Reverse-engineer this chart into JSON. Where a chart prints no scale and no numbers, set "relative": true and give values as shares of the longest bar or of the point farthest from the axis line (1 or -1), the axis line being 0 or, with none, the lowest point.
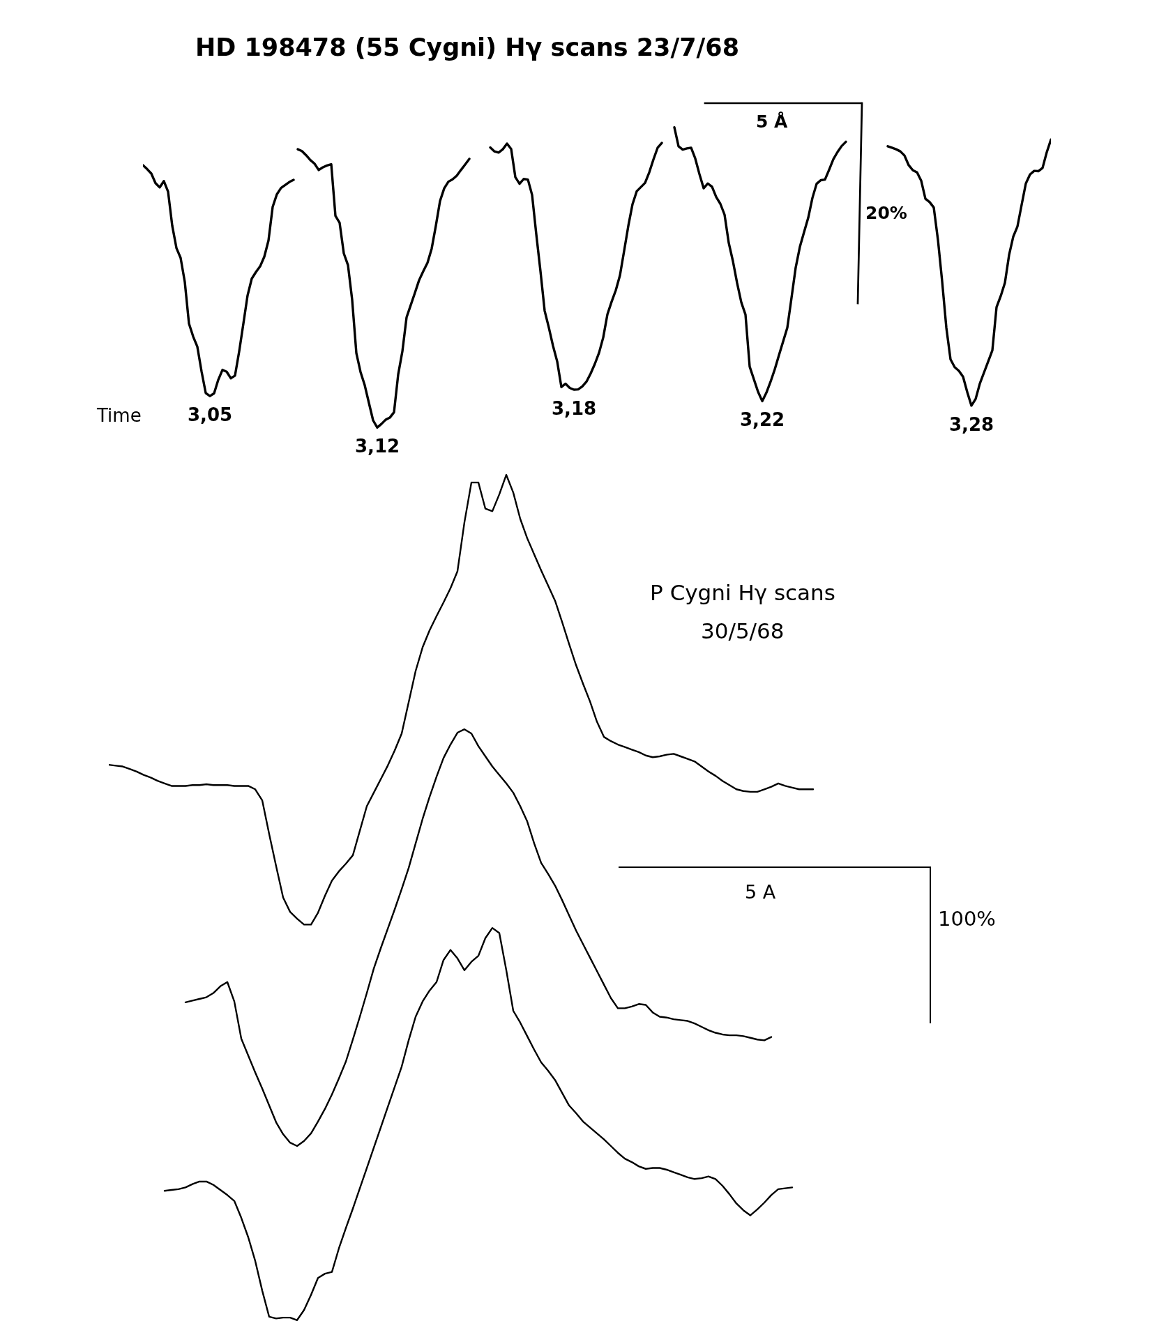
{
  "chart_data": [
    {
      "type": "line",
      "title": "HD 198478 (55 Cygni) Hγ scans 23/7/68",
      "relative": true,
      "tick_labels": false,
      "categories": [
        null,
        null,
        null,
        null,
        null,
        null,
        null,
        null,
        null,
        null,
        null,
        null,
        null,
        null,
        null,
        null,
        null,
        null,
        null,
        null,
        null,
        null,
        null,
        null,
        null,
        null,
        null,
        null,
        null,
        null,
        null,
        null,
        null,
        null,
        null,
        null,
        null,
        null,
        null,
        null,
        null,
        null,
        null,
        null,
        null,
        null,
        null,
        null,
        null,
        null,
        null,
        null,
        null,
        null,
        null,
        null,
        null,
        null,
        null,
        null,
        null,
        null,
        null,
        null,
        null,
        null,
        null,
        null,
        null,
        null,
        null,
        null,
        null,
        null,
        null,
        null,
        null,
        null,
        null,
        null,
        null,
        null,
        null,
        null,
        null,
        null,
        null,
        null,
        null,
        null,
        null,
        null,
        null,
        null,
        null,
        null,
        null,
        null,
        null,
        null,
        null,
        null,
        null,
        null,
        null,
        null,
        null,
        null,
        null,
        null,
        null,
        null,
        null,
        null,
        null,
        null,
        null,
        null,
        null,
        null,
        null,
        null,
        null,
        null,
        null,
        null,
        null,
        null,
        null,
        null,
        null,
        null,
        null,
        null,
        null,
        null,
        null,
        null,
        null,
        null,
        null,
        null,
        null,
        null,
        null,
        null,
        null,
        null,
        null,
        null,
        null,
        null,
        null,
        null,
        null,
        null,
        null,
        null,
        null,
        null,
        null,
        null,
        null,
        null,
        null,
        null,
        null,
        null,
        null,
        null,
        null,
        null,
        null,
        null,
        null,
        null,
        null,
        null,
        null,
        null,
        null,
        null,
        null,
        null,
        null,
        null,
        null,
        null,
        null,
        null,
        null,
        null,
        null,
        null,
        null,
        null,
        null,
        null,
        null,
        null,
        null,
        null,
        null,
        null,
        null,
        null,
        null,
        null,
        null,
        null,
        null,
        null,
        null,
        null,
        null,
        null,
        null,
        null
      ],
      "series": [
        {
          "name": "3,05",
          "color": "#000000",
          "values": [
            0.874,
            0.861,
            0.846,
            0.814,
            0.8,
            0.821,
            0.786,
            0.672,
            0.598,
            0.565,
            0.485,
            0.346,
            0.303,
            0.269,
            0.187,
            0.115,
            0.105,
            0.114,
            0.159,
            0.192,
            0.186,
            0.164,
            0.173,
            0.254,
            0.346,
            0.44,
            0.496,
            0.518,
            0.537,
            0.569,
            0.623,
            0.735,
            0.777,
            0.798,
            0.808,
            0.818,
            0.825,
            null,
            null,
            null,
            null,
            null,
            null,
            null,
            null,
            null,
            null,
            null,
            null,
            null,
            null,
            null,
            null,
            null,
            null,
            null,
            null,
            null,
            null,
            null,
            null,
            null,
            null,
            null,
            null,
            null,
            null,
            null,
            null,
            null,
            null,
            null,
            null,
            null,
            null,
            null,
            null,
            null,
            null,
            null,
            null,
            null,
            null,
            null,
            null,
            null,
            null,
            null,
            null,
            null,
            null,
            null,
            null,
            null,
            null,
            null,
            null,
            null,
            null,
            null,
            null,
            null,
            null,
            null,
            null,
            null,
            null,
            null,
            null,
            null,
            null,
            null,
            null,
            null,
            null,
            null,
            null,
            null,
            null,
            null,
            null,
            null,
            null,
            null,
            null,
            null,
            null,
            null,
            null,
            null,
            null,
            null,
            null,
            null,
            null,
            null,
            null,
            null,
            null,
            null,
            null,
            null,
            null,
            null,
            null,
            null,
            null,
            null,
            null,
            null,
            null,
            null,
            null,
            null,
            null,
            null,
            null,
            null,
            null,
            null,
            null,
            null,
            null,
            null,
            null,
            null,
            null,
            null,
            null,
            null,
            null,
            null,
            null,
            null,
            null,
            null,
            null,
            null,
            null,
            null,
            null,
            null,
            null,
            null,
            null,
            null,
            null,
            null,
            null,
            null,
            null,
            null,
            null,
            null,
            null,
            null,
            null,
            null,
            null,
            null,
            null,
            null,
            null,
            null,
            null,
            null,
            null,
            null,
            null,
            null,
            null,
            null,
            null,
            null,
            null,
            null,
            null,
            null
          ]
        },
        {
          "name": "3,12",
          "color": "#000000",
          "values": [
            null,
            null,
            null,
            null,
            null,
            null,
            null,
            null,
            null,
            null,
            null,
            null,
            null,
            null,
            null,
            null,
            null,
            null,
            null,
            null,
            null,
            null,
            null,
            null,
            null,
            null,
            null,
            null,
            null,
            null,
            null,
            null,
            null,
            null,
            null,
            null,
            null,
            0.927,
            0.921,
            0.907,
            0.891,
            0.879,
            0.858,
            0.867,
            0.873,
            0.877,
            0.705,
            0.682,
            0.58,
            0.541,
            0.425,
            0.248,
            0.185,
            0.141,
            0.082,
            0.024,
            0.0,
            0.012,
            0.026,
            0.033,
            0.051,
            0.177,
            0.254,
            0.367,
            0.408,
            0.449,
            0.491,
            0.521,
            0.549,
            0.596,
            0.672,
            0.755,
            0.797,
            0.819,
            0.827,
            0.839,
            0.858,
            0.876,
            0.895,
            null,
            null,
            null,
            null,
            null,
            null,
            null,
            null,
            null,
            null,
            null,
            null,
            null,
            null,
            null,
            null,
            null,
            null,
            null,
            null,
            null,
            null,
            null,
            null,
            null,
            null,
            null,
            null,
            null,
            null,
            null,
            null,
            null,
            null,
            null,
            null,
            null,
            null,
            null,
            null,
            null,
            null,
            null,
            null,
            null,
            null,
            null,
            null,
            null,
            null,
            null,
            null,
            null,
            null,
            null,
            null,
            null,
            null,
            null,
            null,
            null,
            null,
            null,
            null,
            null,
            null,
            null,
            null,
            null,
            null,
            null,
            null,
            null,
            null,
            null,
            null,
            null,
            null,
            null,
            null,
            null,
            null,
            null,
            null,
            null,
            null,
            null,
            null,
            null,
            null,
            null,
            null,
            null,
            null,
            null,
            null,
            null,
            null,
            null,
            null,
            null,
            null,
            null,
            null,
            null,
            null,
            null,
            null,
            null,
            null,
            null,
            null,
            null,
            null,
            null,
            null,
            null,
            null,
            null,
            null,
            null,
            null,
            null,
            null,
            null,
            null,
            null,
            null,
            null,
            null,
            null,
            null,
            null,
            null,
            null,
            null,
            null,
            null,
            null
          ]
        },
        {
          "name": "3,18",
          "color": "#000000",
          "values": [
            null,
            null,
            null,
            null,
            null,
            null,
            null,
            null,
            null,
            null,
            null,
            null,
            null,
            null,
            null,
            null,
            null,
            null,
            null,
            null,
            null,
            null,
            null,
            null,
            null,
            null,
            null,
            null,
            null,
            null,
            null,
            null,
            null,
            null,
            null,
            null,
            null,
            null,
            null,
            null,
            null,
            null,
            null,
            null,
            null,
            null,
            null,
            null,
            null,
            null,
            null,
            null,
            null,
            null,
            null,
            null,
            null,
            null,
            null,
            null,
            null,
            null,
            null,
            null,
            null,
            null,
            null,
            null,
            null,
            null,
            null,
            null,
            null,
            null,
            null,
            null,
            null,
            null,
            null,
            null,
            null,
            null,
            null,
            0.933,
            0.92,
            0.916,
            0.927,
            0.946,
            0.928,
            0.834,
            0.812,
            0.828,
            0.826,
            0.775,
            0.644,
            0.521,
            0.389,
            0.333,
            0.272,
            0.22,
            0.135,
            0.146,
            0.132,
            0.126,
            0.127,
            0.137,
            0.153,
            0.18,
            0.212,
            0.249,
            0.3,
            0.377,
            0.419,
            0.457,
            0.507,
            0.589,
            0.672,
            0.744,
            0.787,
            0.801,
            0.815,
            0.85,
            0.893,
            0.932,
            0.948,
            null,
            null,
            null,
            null,
            null,
            null,
            null,
            null,
            null,
            null,
            null,
            null,
            null,
            null,
            null,
            null,
            null,
            null,
            null,
            null,
            null,
            null,
            null,
            null,
            null,
            null,
            null,
            null,
            null,
            null,
            null,
            null,
            null,
            null,
            null,
            null,
            null,
            null,
            null,
            null,
            null,
            null,
            null,
            null,
            null,
            null,
            null,
            null,
            null,
            null,
            null,
            null,
            null,
            null,
            null,
            null,
            null,
            null,
            null,
            null,
            null,
            null,
            null,
            null,
            null,
            null,
            null,
            null,
            null,
            null,
            null,
            null,
            null,
            null,
            null,
            null,
            null,
            null,
            null,
            null,
            null,
            null,
            null,
            null,
            null,
            null,
            null,
            null,
            null,
            null,
            null,
            null,
            null
          ]
        },
        {
          "name": "3,22",
          "color": "#000000",
          "values": [
            null,
            null,
            null,
            null,
            null,
            null,
            null,
            null,
            null,
            null,
            null,
            null,
            null,
            null,
            null,
            null,
            null,
            null,
            null,
            null,
            null,
            null,
            null,
            null,
            null,
            null,
            null,
            null,
            null,
            null,
            null,
            null,
            null,
            null,
            null,
            null,
            null,
            null,
            null,
            null,
            null,
            null,
            null,
            null,
            null,
            null,
            null,
            null,
            null,
            null,
            null,
            null,
            null,
            null,
            null,
            null,
            null,
            null,
            null,
            null,
            null,
            null,
            null,
            null,
            null,
            null,
            null,
            null,
            null,
            null,
            null,
            null,
            null,
            null,
            null,
            null,
            null,
            null,
            null,
            null,
            null,
            null,
            null,
            null,
            null,
            null,
            null,
            null,
            null,
            null,
            null,
            null,
            null,
            null,
            null,
            null,
            null,
            null,
            null,
            null,
            null,
            null,
            null,
            null,
            null,
            null,
            null,
            null,
            null,
            null,
            null,
            null,
            null,
            null,
            null,
            null,
            null,
            null,
            null,
            null,
            null,
            null,
            null,
            null,
            null,
            null,
            null,
            1.0,
            0.937,
            0.926,
            0.93,
            0.932,
            0.896,
            0.844,
            0.797,
            0.813,
            0.802,
            0.768,
            0.745,
            0.709,
            0.615,
            0.554,
            0.481,
            0.417,
            0.376,
            0.203,
            0.161,
            0.119,
            0.088,
            0.116,
            0.153,
            0.194,
            0.241,
            0.287,
            0.333,
            0.432,
            0.533,
            0.602,
            0.651,
            0.699,
            0.765,
            0.812,
            0.824,
            0.826,
            0.859,
            0.894,
            0.918,
            0.938,
            0.952,
            null,
            null,
            null,
            null,
            null,
            null,
            null,
            null,
            null,
            null,
            null,
            null,
            null,
            null,
            null,
            null,
            null,
            null,
            null,
            null,
            null,
            null,
            null,
            null,
            null,
            null,
            null,
            null,
            null,
            null,
            null,
            null,
            null,
            null,
            null,
            null,
            null,
            null,
            null,
            null,
            null,
            null,
            null,
            null,
            null,
            null,
            null,
            null,
            null
          ]
        },
        {
          "name": "3,28",
          "color": "#000000",
          "values": [
            null,
            null,
            null,
            null,
            null,
            null,
            null,
            null,
            null,
            null,
            null,
            null,
            null,
            null,
            null,
            null,
            null,
            null,
            null,
            null,
            null,
            null,
            null,
            null,
            null,
            null,
            null,
            null,
            null,
            null,
            null,
            null,
            null,
            null,
            null,
            null,
            null,
            null,
            null,
            null,
            null,
            null,
            null,
            null,
            null,
            null,
            null,
            null,
            null,
            null,
            null,
            null,
            null,
            null,
            null,
            null,
            null,
            null,
            null,
            null,
            null,
            null,
            null,
            null,
            null,
            null,
            null,
            null,
            null,
            null,
            null,
            null,
            null,
            null,
            null,
            null,
            null,
            null,
            null,
            null,
            null,
            null,
            null,
            null,
            null,
            null,
            null,
            null,
            null,
            null,
            null,
            null,
            null,
            null,
            null,
            null,
            null,
            null,
            null,
            null,
            null,
            null,
            null,
            null,
            null,
            null,
            null,
            null,
            null,
            null,
            null,
            null,
            null,
            null,
            null,
            null,
            null,
            null,
            null,
            null,
            null,
            null,
            null,
            null,
            null,
            null,
            null,
            null,
            null,
            null,
            null,
            null,
            null,
            null,
            null,
            null,
            null,
            null,
            null,
            null,
            null,
            null,
            null,
            null,
            null,
            null,
            null,
            null,
            null,
            null,
            null,
            null,
            null,
            null,
            null,
            null,
            null,
            null,
            null,
            null,
            null,
            null,
            null,
            null,
            null,
            null,
            null,
            null,
            null,
            null,
            null,
            null,
            null,
            null,
            null,
            null,
            null,
            null,
            0.937,
            0.932,
            0.927,
            0.92,
            0.906,
            0.874,
            0.857,
            0.85,
            0.822,
            0.762,
            0.751,
            0.733,
            0.625,
            0.487,
            0.333,
            0.227,
            0.201,
            0.189,
            0.169,
            0.118,
            0.073,
            0.095,
            0.146,
            0.183,
            0.22,
            0.257,
            0.401,
            0.438,
            0.482,
            0.575,
            0.636,
            0.67,
            0.742,
            0.813,
            0.843,
            0.855,
            0.854,
            0.865,
            0.917,
            0.959
          ]
        }
      ],
      "annotations": [
        "Time",
        "5 Å",
        "20%"
      ]
    },
    {
      "type": "line",
      "title": "P Cygni Hγ scans",
      "subtitle": "30/5/68",
      "relative": true,
      "tick_labels": false,
      "categories": [
        null,
        null,
        null,
        null,
        null,
        null,
        null,
        null,
        null,
        null,
        null,
        null,
        null,
        null,
        null,
        null,
        null,
        null,
        null,
        null,
        null,
        null,
        null,
        null,
        null,
        null,
        null,
        null,
        null,
        null,
        null,
        null,
        null,
        null,
        null,
        null,
        null,
        null,
        null,
        null,
        null,
        null,
        null,
        null,
        null,
        null,
        null,
        null,
        null,
        null,
        null,
        null,
        null,
        null,
        null,
        null,
        null,
        null,
        null,
        null,
        null,
        null,
        null,
        null,
        null,
        null,
        null,
        null,
        null,
        null,
        null,
        null,
        null,
        null,
        null,
        null,
        null,
        null,
        null,
        null,
        null,
        null,
        null,
        null,
        null,
        null,
        null,
        null,
        null,
        null,
        null,
        null,
        null,
        null,
        null,
        null,
        null,
        null,
        null,
        null,
        null,
        null
      ],
      "series": [
        {
          "color": "#000000",
          "values": [
            0.657,
            0.656,
            0.655,
            0.652,
            0.649,
            0.645,
            0.642,
            0.638,
            0.635,
            0.632,
            0.632,
            0.632,
            0.633,
            0.633,
            0.634,
            0.633,
            0.633,
            0.633,
            0.632,
            0.632,
            0.632,
            0.628,
            0.615,
            0.575,
            0.537,
            0.5,
            0.483,
            0.475,
            0.468,
            0.468,
            0.482,
            0.502,
            0.52,
            0.531,
            0.54,
            0.55,
            0.579,
            0.608,
            0.624,
            0.64,
            0.656,
            0.674,
            0.694,
            0.731,
            0.768,
            0.796,
            0.816,
            0.833,
            0.849,
            0.866,
            0.886,
            0.944,
            0.991,
            0.991,
            0.96,
            0.957,
            0.977,
            1.0,
            0.979,
            0.948,
            0.925,
            0.906,
            0.887,
            0.869,
            0.851,
            0.826,
            0.8,
            0.775,
            0.753,
            0.732,
            0.708,
            0.69,
            0.685,
            0.681,
            0.678,
            0.675,
            0.672,
            0.668,
            0.666,
            0.667,
            0.669,
            0.67,
            0.667,
            0.664,
            0.661,
            0.655,
            0.649,
            0.644,
            0.638,
            0.633,
            0.628,
            0.626,
            0.625,
            0.625,
            0.628,
            0.631,
            0.635,
            0.632,
            0.63,
            0.628,
            0.628,
            0.628
          ]
        },
        {
          "color": "#000000",
          "values": [
            null,
            null,
            null,
            null,
            null,
            null,
            null,
            null,
            null,
            null,
            null,
            0.376,
            0.378,
            0.38,
            0.382,
            0.387,
            0.395,
            0.4,
            0.377,
            0.333,
            0.313,
            0.293,
            0.274,
            0.254,
            0.234,
            0.22,
            0.21,
            0.206,
            0.212,
            0.221,
            0.235,
            0.25,
            0.267,
            0.286,
            0.306,
            0.332,
            0.359,
            0.387,
            0.416,
            0.44,
            0.463,
            0.486,
            0.51,
            0.535,
            0.564,
            0.593,
            0.619,
            0.643,
            0.665,
            0.681,
            0.695,
            0.699,
            0.694,
            0.679,
            0.667,
            0.655,
            0.645,
            0.635,
            0.624,
            0.608,
            0.59,
            0.564,
            0.541,
            0.528,
            0.514,
            0.497,
            0.479,
            0.461,
            0.445,
            0.429,
            0.413,
            0.397,
            0.381,
            0.369,
            0.369,
            0.371,
            0.374,
            0.373,
            0.364,
            0.359,
            0.358,
            0.356,
            0.355,
            0.354,
            0.351,
            0.347,
            0.343,
            0.34,
            0.338,
            0.337,
            0.337,
            0.336,
            0.334,
            0.332,
            0.331,
            0.335,
            null,
            null,
            null,
            null,
            null,
            null
          ]
        },
        {
          "color": "#000000",
          "values": [
            null,
            null,
            null,
            null,
            null,
            null,
            null,
            null,
            0.153,
            0.154,
            0.155,
            0.157,
            0.161,
            0.164,
            0.164,
            0.16,
            0.154,
            0.148,
            0.141,
            0.121,
            0.098,
            0.07,
            0.035,
            0.004,
            0.002,
            0.003,
            0.003,
            0.0,
            0.012,
            0.03,
            0.05,
            0.055,
            0.057,
            0.085,
            0.109,
            0.132,
            0.156,
            0.18,
            0.204,
            0.228,
            0.252,
            0.276,
            0.3,
            0.331,
            0.359,
            0.377,
            0.39,
            0.4,
            0.426,
            0.438,
            0.428,
            0.414,
            0.424,
            0.431,
            0.452,
            0.464,
            0.458,
            0.414,
            0.366,
            0.352,
            0.336,
            0.32,
            0.305,
            0.295,
            0.284,
            0.269,
            0.254,
            0.245,
            0.235,
            0.228,
            0.221,
            0.214,
            0.206,
            0.198,
            0.191,
            0.187,
            0.182,
            0.179,
            0.18,
            0.18,
            0.178,
            0.175,
            0.172,
            0.169,
            0.167,
            0.168,
            0.17,
            0.167,
            0.159,
            0.149,
            0.138,
            0.13,
            0.124,
            0.131,
            0.139,
            0.148,
            0.155,
            0.156,
            0.157,
            null,
            null,
            null
          ]
        }
      ],
      "annotations": [
        "5 A",
        "100%"
      ]
    }
  ]
}
